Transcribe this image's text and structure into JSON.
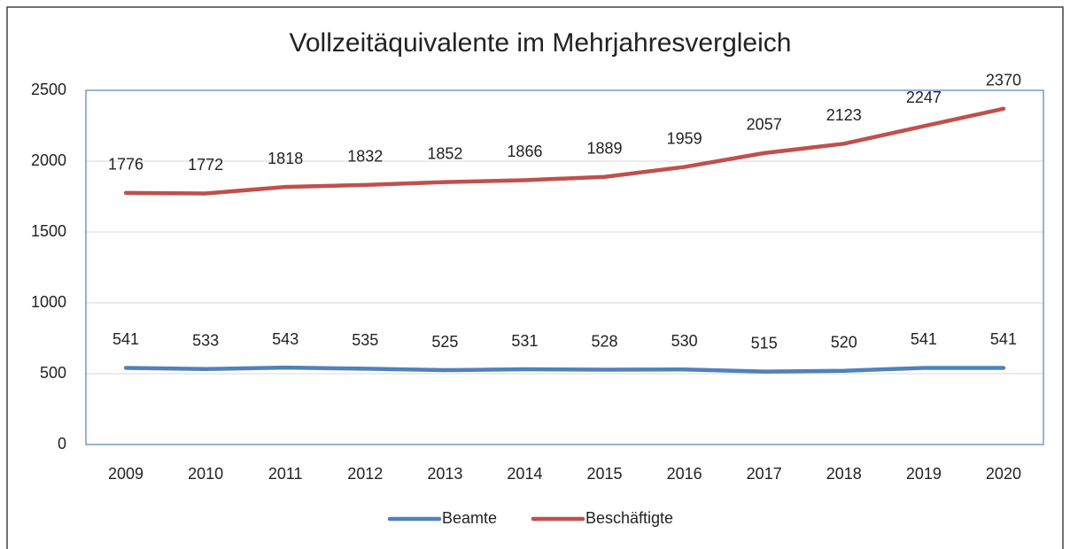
{
  "chart_data": {
    "type": "line",
    "title": "Vollzeitäquivalente im Mehrjahresvergleich",
    "categories": [
      "2009",
      "2010",
      "2011",
      "2012",
      "2013",
      "2014",
      "2015",
      "2016",
      "2017",
      "2018",
      "2019",
      "2020"
    ],
    "series": [
      {
        "name": "Beamte",
        "color": "#4f81bd",
        "values": [
          541,
          533,
          543,
          535,
          525,
          531,
          528,
          530,
          515,
          520,
          541,
          541
        ]
      },
      {
        "name": "Beschäftigte",
        "color": "#c0504d",
        "values": [
          1776,
          1772,
          1818,
          1832,
          1852,
          1866,
          1889,
          1959,
          2057,
          2123,
          2247,
          2370
        ]
      }
    ],
    "ylim": [
      0,
      2500
    ],
    "yticks": [
      0,
      500,
      1000,
      1500,
      2000,
      2500
    ],
    "grid": true,
    "legend": "bottom"
  }
}
